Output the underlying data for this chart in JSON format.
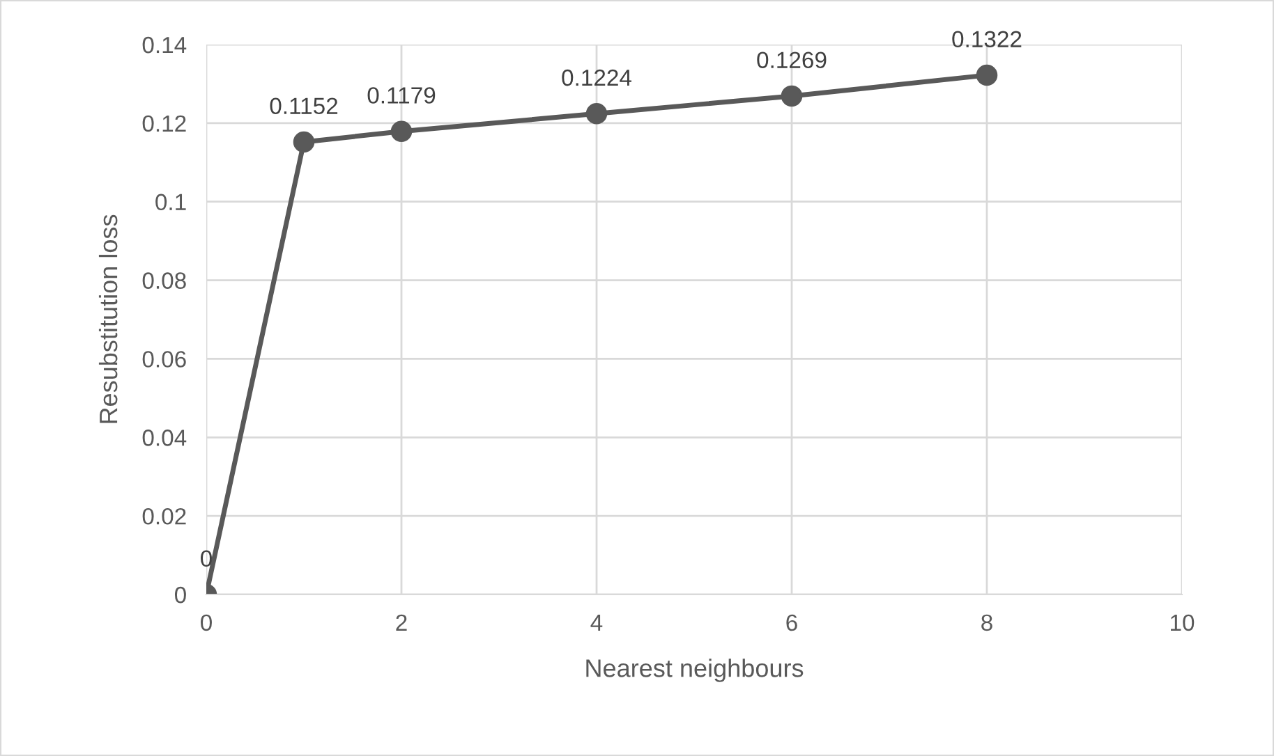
{
  "chart_data": {
    "type": "line",
    "xlabel": "Nearest neighbours",
    "ylabel": "Resubstitution loss",
    "x": [
      0,
      1,
      2,
      4,
      6,
      8
    ],
    "series": [
      {
        "color": "#595959",
        "values": [
          0,
          0.1152,
          0.1179,
          0.1224,
          0.1269,
          0.1322
        ]
      }
    ],
    "xlim": [
      0,
      10
    ],
    "xticks": [
      0,
      2,
      4,
      6,
      8,
      10
    ],
    "ylim": [
      0,
      0.14
    ],
    "yticks": [
      0,
      0.02,
      0.04,
      0.06,
      0.08,
      0.1,
      0.12,
      0.14
    ],
    "grid": true,
    "marker": "circle",
    "line_style": "solid",
    "data_labels": true
  }
}
